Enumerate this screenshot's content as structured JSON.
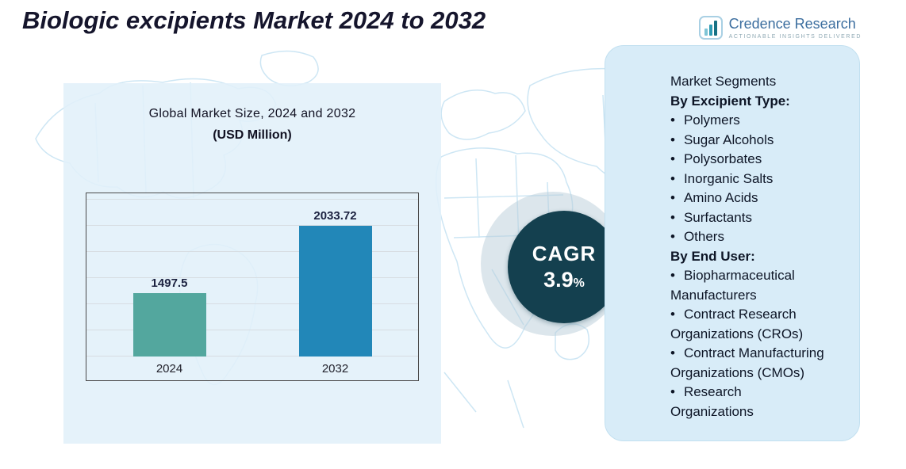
{
  "page": {
    "title": "Biologic excipients Market 2024 to 2032"
  },
  "logo": {
    "name": "Credence Research",
    "tagline": "Actionable Insights Delivered"
  },
  "chart_data": {
    "type": "bar",
    "title": "Global Market Size, 2024 and 2032",
    "subtitle": "(USD Million)",
    "categories": [
      "2024",
      "2032"
    ],
    "values": [
      1497.5,
      2033.72
    ],
    "value_labels": [
      "1497.5",
      "2033.72"
    ],
    "bar_colors": [
      "#53a79e",
      "#2287b8"
    ],
    "axis_range": [
      1000,
      2250
    ],
    "grid": true,
    "legend": "none",
    "xlabel": "",
    "ylabel": ""
  },
  "cagr": {
    "label": "CAGR",
    "value": "3.9",
    "unit": "%"
  },
  "segments": {
    "title": "Market Segments",
    "groups": [
      {
        "heading": "By Excipient Type:",
        "items": [
          "Polymers",
          "Sugar Alcohols",
          "Polysorbates",
          "Inorganic Salts",
          "Amino Acids",
          "Surfactants",
          "Others"
        ]
      },
      {
        "heading": "By End User:",
        "items": [
          "Biopharmaceutical Manufacturers",
          "Contract Research Organizations (CROs)",
          "Contract Manufacturing Organizations (CMOs)",
          "Research Organizations"
        ]
      }
    ]
  },
  "colors": {
    "bar_2024": "#53a79e",
    "bar_2032": "#2287b8",
    "cagr_circle": "#14404f",
    "panel_background": "#d8ecf8",
    "map_line": "#cde6f4"
  }
}
